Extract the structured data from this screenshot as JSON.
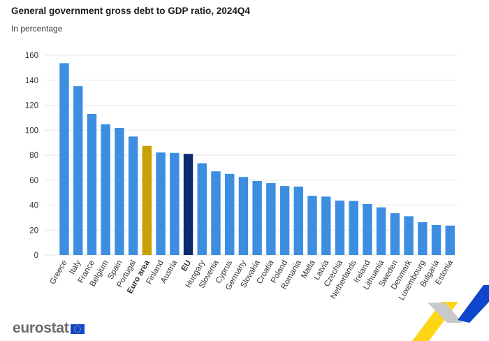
{
  "header": {
    "title": "General government gross debt to GDP ratio, 2024Q4",
    "subtitle": "In percentage"
  },
  "logo": {
    "text": "eurostat"
  },
  "colors": {
    "bar": "#3d8ee0",
    "euro_area": "#c8a100",
    "eu": "#0c2a72",
    "grid": "#e6e6e6",
    "axis_text": "#333333"
  },
  "chart_data": {
    "type": "bar",
    "title": "General government gross debt to GDP ratio, 2024Q4",
    "subtitle": "In percentage",
    "categories": [
      "Greece",
      "Italy",
      "France",
      "Belgium",
      "Spain",
      "Portugal",
      "Euro area",
      "Finland",
      "Austria",
      "EU",
      "Hungary",
      "Slovenia",
      "Cyprus",
      "Germany",
      "Slovakia",
      "Croatia",
      "Poland",
      "Romania",
      "Malta",
      "Latvia",
      "Czechia",
      "Netherlands",
      "Ireland",
      "Lithuania",
      "Sweden",
      "Denmark",
      "Luxembourg",
      "Bulgaria",
      "Estonia"
    ],
    "values": [
      153.6,
      135.3,
      113.0,
      104.7,
      101.8,
      94.9,
      87.4,
      82.1,
      81.8,
      81.0,
      73.5,
      67.0,
      65.0,
      62.5,
      59.3,
      57.6,
      55.3,
      54.8,
      47.4,
      46.8,
      43.6,
      43.3,
      40.9,
      38.2,
      33.5,
      31.1,
      26.3,
      24.1,
      23.6
    ],
    "highlight": {
      "Euro area": "euro_area",
      "EU": "eu"
    },
    "bold_categories": [
      "Euro area",
      "EU"
    ],
    "ylim": [
      0,
      160
    ],
    "yticks": [
      0,
      20,
      40,
      60,
      80,
      100,
      120,
      140,
      160
    ],
    "grid": true,
    "legend": "none"
  }
}
